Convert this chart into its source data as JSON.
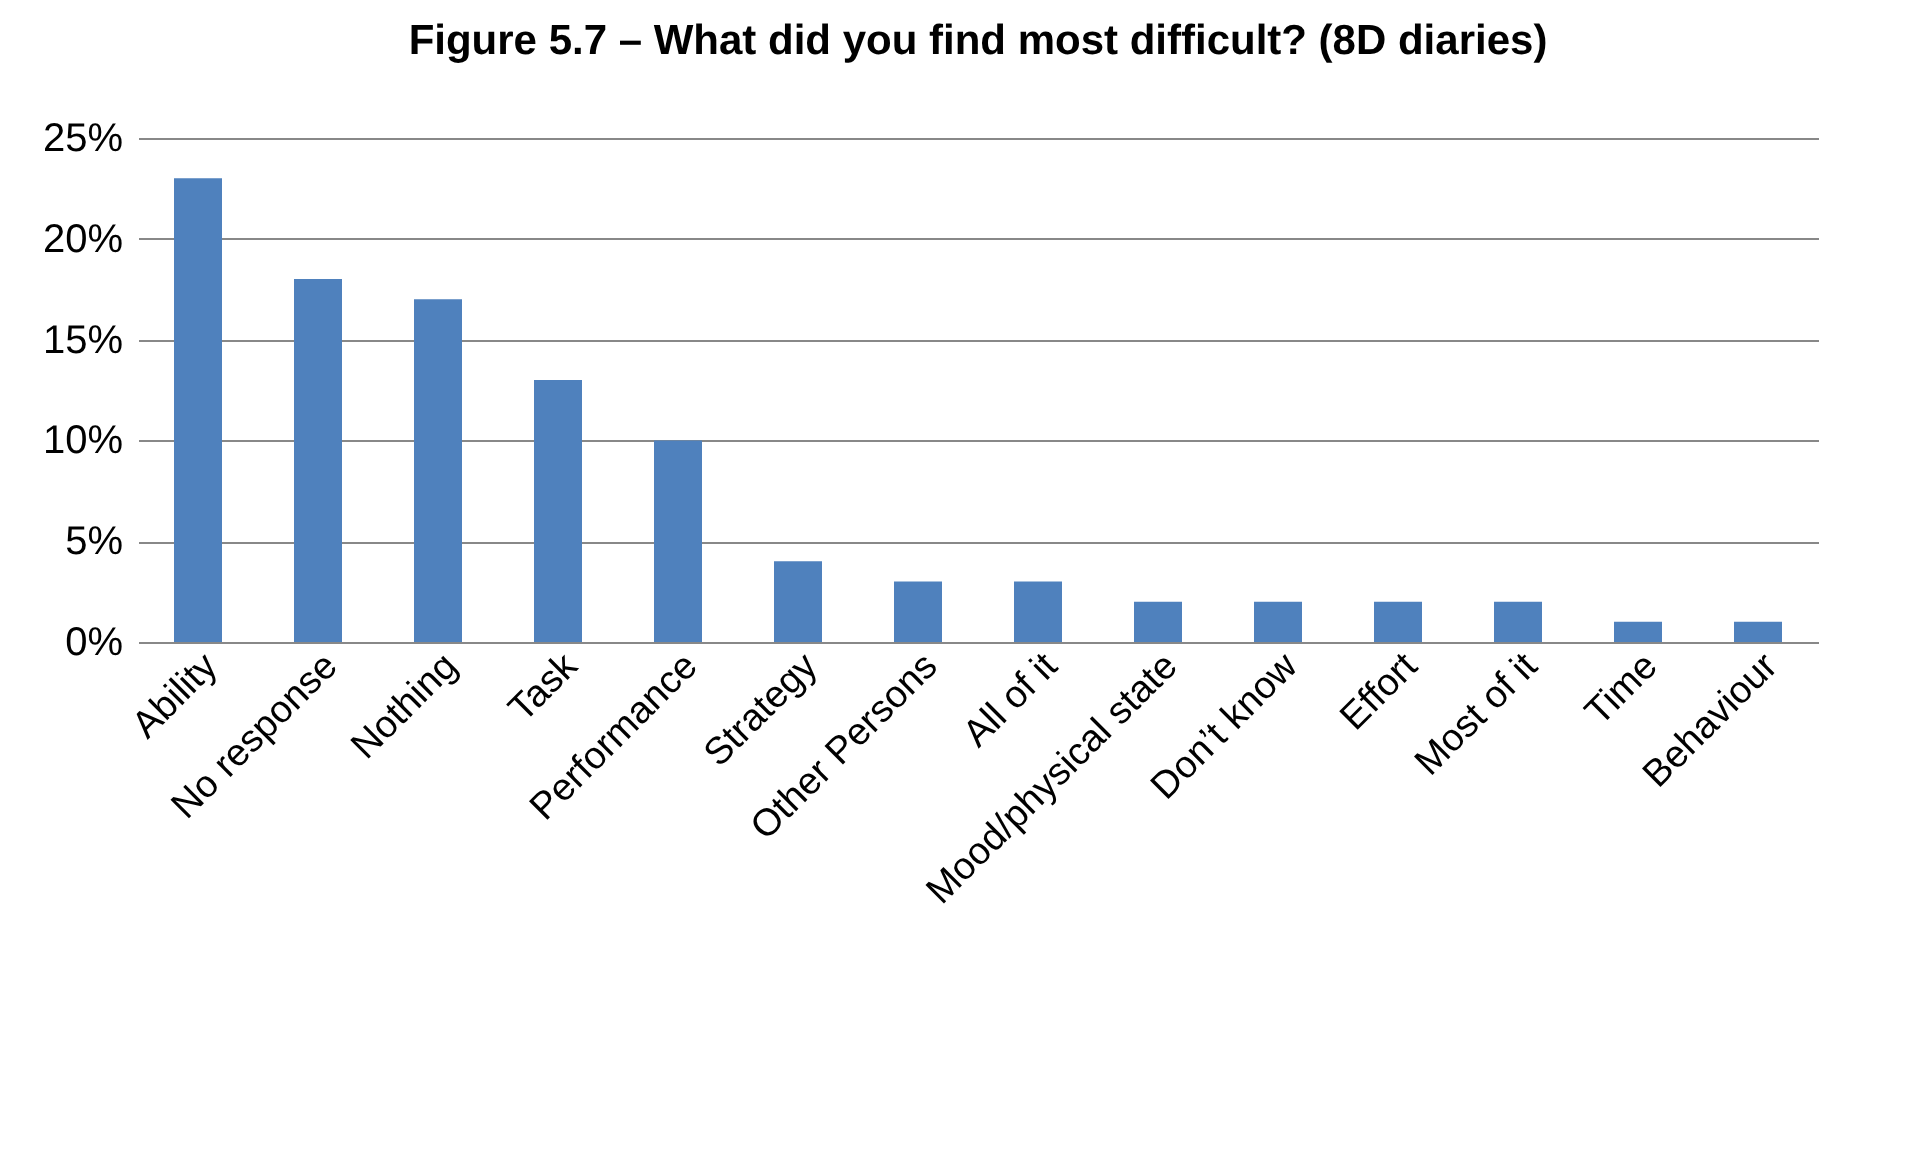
{
  "chart_data": {
    "type": "bar",
    "title": "Figure 5.7 – What did you find most difficult? (8D diaries)",
    "categories": [
      "Ability",
      "No response",
      "Nothing",
      "Task",
      "Performance",
      "Strategy",
      "Other Persons",
      "All of it",
      "Mood/physical state",
      "Don’t know",
      "Effort",
      "Most of it",
      "Time",
      "Behaviour"
    ],
    "values": [
      23,
      18,
      17,
      13,
      10,
      4,
      3,
      3,
      2,
      2,
      2,
      2,
      1,
      1
    ],
    "color": "#4f81bd",
    "ylim": [
      0,
      25
    ],
    "yticks": [
      {
        "value": 0,
        "label": "0%"
      },
      {
        "value": 5,
        "label": "5%"
      },
      {
        "value": 10,
        "label": "10%"
      },
      {
        "value": 15,
        "label": "15%"
      },
      {
        "value": 20,
        "label": "20%"
      },
      {
        "value": 25,
        "label": "25%"
      }
    ],
    "grid": "y"
  }
}
